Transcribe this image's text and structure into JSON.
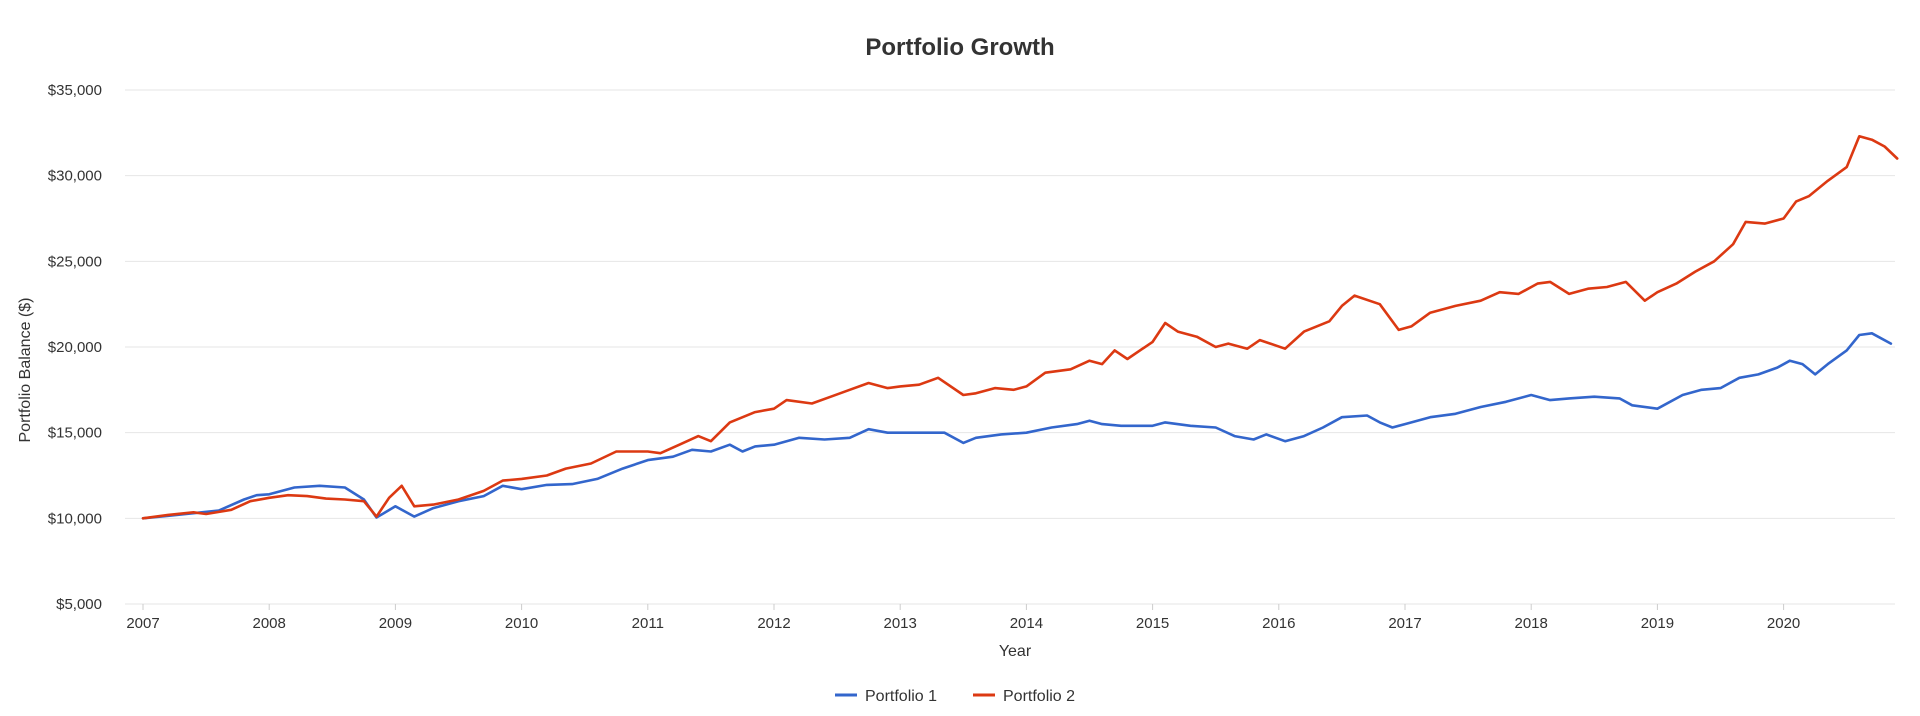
{
  "chart_data": {
    "type": "line",
    "title": "Portfolio Growth",
    "xlabel": "Year",
    "ylabel": "Portfolio Balance ($)",
    "xlim": [
      2007,
      2020.9
    ],
    "ylim": [
      5000,
      35000
    ],
    "grid": "horizontal",
    "legend": "bottom-center",
    "x_ticks": [
      "2007",
      "2008",
      "2009",
      "2010",
      "2011",
      "2012",
      "2013",
      "2014",
      "2015",
      "2016",
      "2017",
      "2018",
      "2019",
      "2020"
    ],
    "y_ticks": [
      "$5,000",
      "$10,000",
      "$15,000",
      "$20,000",
      "$25,000",
      "$30,000",
      "$35,000"
    ],
    "series": [
      {
        "name": "Portfolio 1",
        "color": "#3366cc",
        "points": [
          [
            2007.0,
            10000
          ],
          [
            2007.2,
            10150
          ],
          [
            2007.4,
            10300
          ],
          [
            2007.6,
            10450
          ],
          [
            2007.8,
            11100
          ],
          [
            2007.9,
            11350
          ],
          [
            2008.0,
            11400
          ],
          [
            2008.2,
            11800
          ],
          [
            2008.4,
            11900
          ],
          [
            2008.6,
            11800
          ],
          [
            2008.75,
            11100
          ],
          [
            2008.85,
            10050
          ],
          [
            2009.0,
            10700
          ],
          [
            2009.15,
            10100
          ],
          [
            2009.3,
            10600
          ],
          [
            2009.5,
            11000
          ],
          [
            2009.7,
            11300
          ],
          [
            2009.85,
            11900
          ],
          [
            2010.0,
            11700
          ],
          [
            2010.2,
            11950
          ],
          [
            2010.4,
            12000
          ],
          [
            2010.6,
            12300
          ],
          [
            2010.8,
            12900
          ],
          [
            2011.0,
            13400
          ],
          [
            2011.2,
            13600
          ],
          [
            2011.35,
            14000
          ],
          [
            2011.5,
            13900
          ],
          [
            2011.65,
            14300
          ],
          [
            2011.75,
            13900
          ],
          [
            2011.85,
            14200
          ],
          [
            2012.0,
            14300
          ],
          [
            2012.2,
            14700
          ],
          [
            2012.4,
            14600
          ],
          [
            2012.6,
            14700
          ],
          [
            2012.75,
            15200
          ],
          [
            2012.9,
            15000
          ],
          [
            2013.0,
            15000
          ],
          [
            2013.2,
            15000
          ],
          [
            2013.35,
            15000
          ],
          [
            2013.5,
            14400
          ],
          [
            2013.6,
            14700
          ],
          [
            2013.8,
            14900
          ],
          [
            2014.0,
            15000
          ],
          [
            2014.2,
            15300
          ],
          [
            2014.4,
            15500
          ],
          [
            2014.5,
            15700
          ],
          [
            2014.6,
            15500
          ],
          [
            2014.75,
            15400
          ],
          [
            2015.0,
            15400
          ],
          [
            2015.1,
            15600
          ],
          [
            2015.3,
            15400
          ],
          [
            2015.5,
            15300
          ],
          [
            2015.65,
            14800
          ],
          [
            2015.8,
            14600
          ],
          [
            2015.9,
            14900
          ],
          [
            2016.05,
            14500
          ],
          [
            2016.2,
            14800
          ],
          [
            2016.35,
            15300
          ],
          [
            2016.5,
            15900
          ],
          [
            2016.7,
            16000
          ],
          [
            2016.8,
            15600
          ],
          [
            2016.9,
            15300
          ],
          [
            2017.0,
            15500
          ],
          [
            2017.2,
            15900
          ],
          [
            2017.4,
            16100
          ],
          [
            2017.6,
            16500
          ],
          [
            2017.8,
            16800
          ],
          [
            2018.0,
            17200
          ],
          [
            2018.15,
            16900
          ],
          [
            2018.3,
            17000
          ],
          [
            2018.5,
            17100
          ],
          [
            2018.7,
            17000
          ],
          [
            2018.8,
            16600
          ],
          [
            2019.0,
            16400
          ],
          [
            2019.2,
            17200
          ],
          [
            2019.35,
            17500
          ],
          [
            2019.5,
            17600
          ],
          [
            2019.65,
            18200
          ],
          [
            2019.8,
            18400
          ],
          [
            2019.95,
            18800
          ],
          [
            2020.05,
            19200
          ],
          [
            2020.15,
            19000
          ],
          [
            2020.25,
            18400
          ],
          [
            2020.35,
            19000
          ],
          [
            2020.5,
            19800
          ],
          [
            2020.6,
            20700
          ],
          [
            2020.7,
            20800
          ],
          [
            2020.85,
            20200
          ]
        ]
      },
      {
        "name": "Portfolio 2",
        "color": "#dc3912",
        "points": [
          [
            2007.0,
            10000
          ],
          [
            2007.2,
            10200
          ],
          [
            2007.4,
            10350
          ],
          [
            2007.5,
            10250
          ],
          [
            2007.7,
            10500
          ],
          [
            2007.85,
            11000
          ],
          [
            2008.0,
            11200
          ],
          [
            2008.15,
            11350
          ],
          [
            2008.3,
            11300
          ],
          [
            2008.45,
            11150
          ],
          [
            2008.6,
            11100
          ],
          [
            2008.75,
            11000
          ],
          [
            2008.85,
            10100
          ],
          [
            2008.95,
            11200
          ],
          [
            2009.05,
            11900
          ],
          [
            2009.15,
            10700
          ],
          [
            2009.3,
            10800
          ],
          [
            2009.5,
            11100
          ],
          [
            2009.7,
            11600
          ],
          [
            2009.85,
            12200
          ],
          [
            2010.0,
            12300
          ],
          [
            2010.2,
            12500
          ],
          [
            2010.35,
            12900
          ],
          [
            2010.55,
            13200
          ],
          [
            2010.75,
            13900
          ],
          [
            2011.0,
            13900
          ],
          [
            2011.1,
            13800
          ],
          [
            2011.25,
            14300
          ],
          [
            2011.4,
            14800
          ],
          [
            2011.5,
            14500
          ],
          [
            2011.65,
            15600
          ],
          [
            2011.85,
            16200
          ],
          [
            2012.0,
            16400
          ],
          [
            2012.1,
            16900
          ],
          [
            2012.3,
            16700
          ],
          [
            2012.45,
            17100
          ],
          [
            2012.6,
            17500
          ],
          [
            2012.75,
            17900
          ],
          [
            2012.9,
            17600
          ],
          [
            2013.0,
            17700
          ],
          [
            2013.15,
            17800
          ],
          [
            2013.3,
            18200
          ],
          [
            2013.5,
            17200
          ],
          [
            2013.6,
            17300
          ],
          [
            2013.75,
            17600
          ],
          [
            2013.9,
            17500
          ],
          [
            2014.0,
            17700
          ],
          [
            2014.15,
            18500
          ],
          [
            2014.35,
            18700
          ],
          [
            2014.5,
            19200
          ],
          [
            2014.6,
            19000
          ],
          [
            2014.7,
            19800
          ],
          [
            2014.8,
            19300
          ],
          [
            2015.0,
            20300
          ],
          [
            2015.1,
            21400
          ],
          [
            2015.2,
            20900
          ],
          [
            2015.35,
            20600
          ],
          [
            2015.5,
            20000
          ],
          [
            2015.6,
            20200
          ],
          [
            2015.75,
            19900
          ],
          [
            2015.85,
            20400
          ],
          [
            2016.05,
            19900
          ],
          [
            2016.2,
            20900
          ],
          [
            2016.4,
            21500
          ],
          [
            2016.5,
            22400
          ],
          [
            2016.6,
            23000
          ],
          [
            2016.8,
            22500
          ],
          [
            2016.95,
            21000
          ],
          [
            2017.05,
            21200
          ],
          [
            2017.2,
            22000
          ],
          [
            2017.4,
            22400
          ],
          [
            2017.6,
            22700
          ],
          [
            2017.75,
            23200
          ],
          [
            2017.9,
            23100
          ],
          [
            2018.05,
            23700
          ],
          [
            2018.15,
            23800
          ],
          [
            2018.3,
            23100
          ],
          [
            2018.45,
            23400
          ],
          [
            2018.6,
            23500
          ],
          [
            2018.75,
            23800
          ],
          [
            2018.9,
            22700
          ],
          [
            2019.0,
            23200
          ],
          [
            2019.15,
            23700
          ],
          [
            2019.3,
            24400
          ],
          [
            2019.45,
            25000
          ],
          [
            2019.6,
            26000
          ],
          [
            2019.7,
            27300
          ],
          [
            2019.85,
            27200
          ],
          [
            2020.0,
            27500
          ],
          [
            2020.1,
            28500
          ],
          [
            2020.2,
            28800
          ],
          [
            2020.35,
            29700
          ],
          [
            2020.5,
            30500
          ],
          [
            2020.6,
            32300
          ],
          [
            2020.7,
            32100
          ],
          [
            2020.8,
            31700
          ],
          [
            2020.9,
            31000
          ]
        ]
      }
    ]
  }
}
